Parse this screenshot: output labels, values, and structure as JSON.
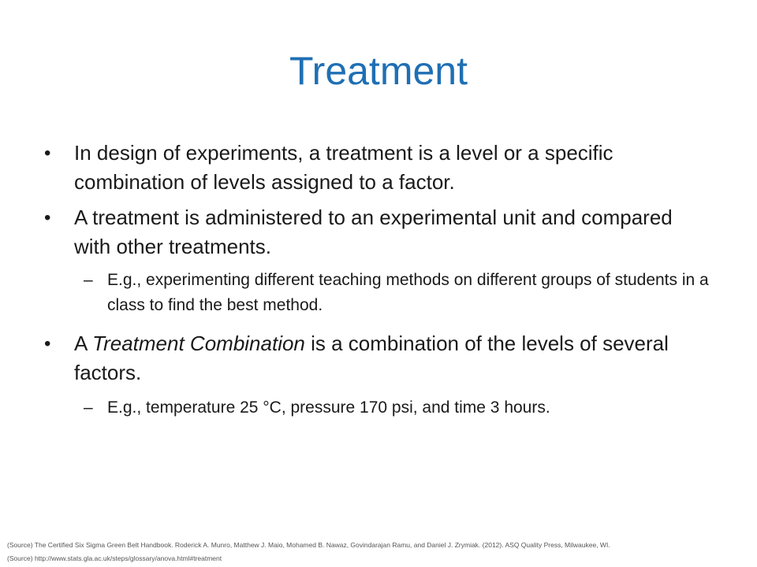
{
  "slide": {
    "title": "Treatment",
    "bullets": [
      {
        "text": "In design of experiments, a treatment is a level or a specific combination of levels assigned to a factor."
      },
      {
        "text": "A treatment is administered to an experimental unit and compared with other treatments.",
        "sub": "E.g., experimenting different teaching methods on different groups of students in a class to find the best method."
      },
      {
        "prefix": "A ",
        "emphasis": "Treatment Combination",
        "suffix": " is a combination of the levels of several factors.",
        "sub": "E.g., temperature 25 °C, pressure 170 psi, and time 3 hours."
      }
    ],
    "bullet_glyph": "•",
    "dash_glyph": "–",
    "sources": [
      "(Source) The Certified Six Sigma Green Belt Handbook. Roderick A. Munro, Matthew J. Maio, Mohamed B. Nawaz, Govindarajan Ramu, and Daniel J. Zrymiak. (2012). ASQ Quality Press,  Milwaukee, WI.",
      "(Source) http://www.stats.gla.ac.uk/steps/glossary/anova.html#treatment"
    ],
    "colors": {
      "title": "#1f6fb4",
      "text": "#1a1a1a",
      "source": "#555555"
    }
  }
}
